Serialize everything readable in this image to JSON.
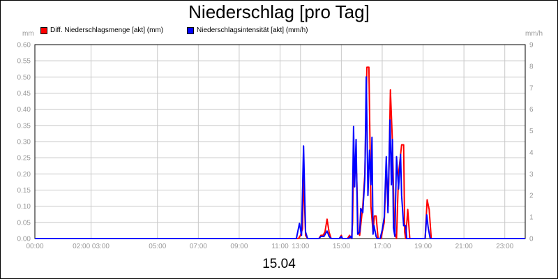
{
  "title": "Niederschlag [pro Tag]",
  "date_label": "15.04",
  "chart_data": {
    "type": "line",
    "title": "Niederschlag [pro Tag]",
    "xlabel": "15.04",
    "y_left": {
      "unit": "mm",
      "ylim": [
        0,
        0.6
      ],
      "ticks": [
        "0.00",
        "0.05",
        "0.10",
        "0.15",
        "0.20",
        "0.25",
        "0.30",
        "0.35",
        "0.40",
        "0.45",
        "0.50",
        "0.55",
        "0.60"
      ]
    },
    "y_right": {
      "unit": "mm/h",
      "ylim": [
        0,
        9
      ],
      "ticks": [
        "0",
        "1",
        "2",
        "3",
        "4",
        "5",
        "6",
        "7",
        "8",
        "9"
      ]
    },
    "x_range": [
      0,
      24
    ],
    "x_ticks": [
      {
        "h": 0,
        "label": "00:00"
      },
      {
        "h": 2.75,
        "label": "02:00 03:00"
      },
      {
        "h": 6,
        "label": "05:00"
      },
      {
        "h": 8,
        "label": "07:00"
      },
      {
        "h": 10,
        "label": "09:00"
      },
      {
        "h": 12,
        "label": "11:00"
      },
      {
        "h": 13,
        "label": "13:00"
      },
      {
        "h": 15,
        "label": "15:00"
      },
      {
        "h": 17,
        "label": "17:00"
      },
      {
        "h": 19,
        "label": "19:00"
      },
      {
        "h": 21,
        "label": "21:00"
      },
      {
        "h": 23,
        "label": "23:00"
      }
    ],
    "grid": true,
    "legend_position": "top-left",
    "series": [
      {
        "name": "Diff. Niederschlagsmenge [akt] (mm)",
        "axis": "left",
        "color": "#ff0000",
        "points": [
          [
            0,
            0
          ],
          [
            12.9,
            0
          ],
          [
            13.0,
            0.01
          ],
          [
            13.1,
            0.03
          ],
          [
            13.15,
            0.2
          ],
          [
            13.25,
            0.01
          ],
          [
            13.35,
            0
          ],
          [
            13.9,
            0
          ],
          [
            14.0,
            0.01
          ],
          [
            14.1,
            0.01
          ],
          [
            14.2,
            0.02
          ],
          [
            14.3,
            0.06
          ],
          [
            14.4,
            0.02
          ],
          [
            14.5,
            0
          ],
          [
            14.9,
            0
          ],
          [
            15.0,
            0.01
          ],
          [
            15.05,
            0
          ],
          [
            15.3,
            0
          ],
          [
            15.4,
            0.01
          ],
          [
            15.5,
            0
          ],
          [
            15.55,
            0.05
          ],
          [
            15.6,
            0.25
          ],
          [
            15.65,
            0.22
          ],
          [
            15.75,
            0.2
          ],
          [
            15.82,
            0.02
          ],
          [
            15.9,
            0.01
          ],
          [
            16.05,
            0.1
          ],
          [
            16.15,
            0.2
          ],
          [
            16.25,
            0.53
          ],
          [
            16.35,
            0.53
          ],
          [
            16.45,
            0.1
          ],
          [
            16.55,
            0.02
          ],
          [
            16.62,
            0.07
          ],
          [
            16.7,
            0.07
          ],
          [
            16.8,
            0
          ],
          [
            16.95,
            0
          ],
          [
            17.0,
            0.02
          ],
          [
            17.1,
            0.05
          ],
          [
            17.2,
            0.22
          ],
          [
            17.3,
            0.1
          ],
          [
            17.4,
            0.46
          ],
          [
            17.5,
            0.3
          ],
          [
            17.6,
            0.02
          ],
          [
            17.7,
            0
          ],
          [
            17.8,
            0.2
          ],
          [
            17.95,
            0.29
          ],
          [
            18.05,
            0.29
          ],
          [
            18.1,
            0.02
          ],
          [
            18.15,
            0
          ],
          [
            18.25,
            0.09
          ],
          [
            18.35,
            0
          ],
          [
            19.1,
            0
          ],
          [
            19.2,
            0.12
          ],
          [
            19.3,
            0.09
          ],
          [
            19.4,
            0
          ],
          [
            24,
            0
          ]
        ]
      },
      {
        "name": "Niederschlagsintensität [akt] (mm/h)",
        "axis": "right",
        "color": "#0000ff",
        "points": [
          [
            0,
            0
          ],
          [
            12.8,
            0
          ],
          [
            12.95,
            0.7
          ],
          [
            13.05,
            0.15
          ],
          [
            13.15,
            4.3
          ],
          [
            13.25,
            0.3
          ],
          [
            13.35,
            0
          ],
          [
            13.9,
            0
          ],
          [
            14.0,
            0.1
          ],
          [
            14.15,
            0.1
          ],
          [
            14.3,
            0.35
          ],
          [
            14.4,
            0.1
          ],
          [
            14.5,
            0
          ],
          [
            14.9,
            0
          ],
          [
            15.0,
            0.1
          ],
          [
            15.05,
            0
          ],
          [
            15.35,
            0
          ],
          [
            15.45,
            0.1
          ],
          [
            15.52,
            0
          ],
          [
            15.6,
            5.2
          ],
          [
            15.65,
            2.4
          ],
          [
            15.72,
            4.6
          ],
          [
            15.8,
            0.2
          ],
          [
            15.9,
            0.3
          ],
          [
            15.95,
            1.4
          ],
          [
            16.05,
            1.2
          ],
          [
            16.15,
            2.8
          ],
          [
            16.22,
            7.5
          ],
          [
            16.3,
            2.0
          ],
          [
            16.38,
            4.1
          ],
          [
            16.45,
            2.5
          ],
          [
            16.5,
            4.7
          ],
          [
            16.55,
            0.2
          ],
          [
            16.6,
            0.6
          ],
          [
            16.7,
            0.1
          ],
          [
            16.75,
            0
          ],
          [
            16.9,
            0
          ],
          [
            17.0,
            0.4
          ],
          [
            17.1,
            1.0
          ],
          [
            17.2,
            3.8
          ],
          [
            17.28,
            1.2
          ],
          [
            17.38,
            5.5
          ],
          [
            17.45,
            2.5
          ],
          [
            17.5,
            4.6
          ],
          [
            17.55,
            0.5
          ],
          [
            17.62,
            0.1
          ],
          [
            17.7,
            3.8
          ],
          [
            17.8,
            2.3
          ],
          [
            17.9,
            3.9
          ],
          [
            17.95,
            2.0
          ],
          [
            18.05,
            0.6
          ],
          [
            18.15,
            0.6
          ],
          [
            18.2,
            0
          ],
          [
            19.1,
            0
          ],
          [
            19.18,
            1.1
          ],
          [
            19.25,
            0.5
          ],
          [
            19.35,
            0
          ],
          [
            24,
            0
          ]
        ]
      }
    ]
  }
}
